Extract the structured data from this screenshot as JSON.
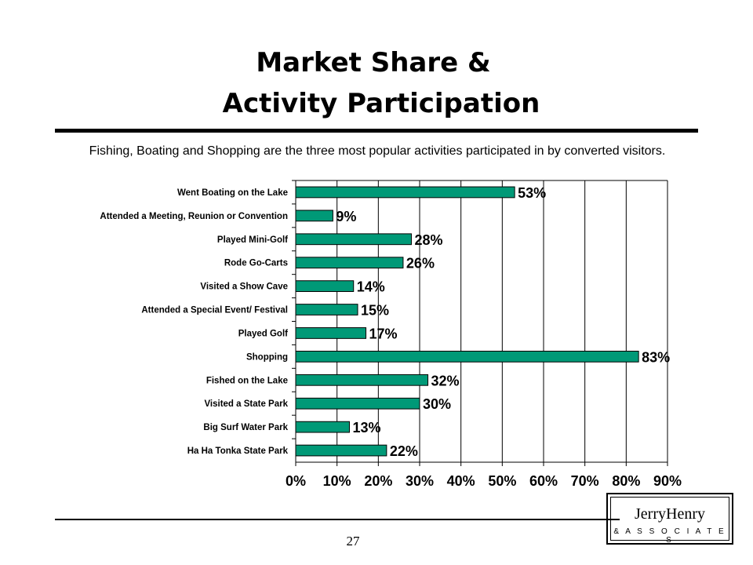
{
  "title_line1": "Market Share &",
  "title_line2": "Activity Participation",
  "subtitle": "Fishing, Boating and Shopping are the three most popular activities participated in by converted visitors.",
  "page_number": "27",
  "logo": {
    "name": "JerryHenry",
    "sub": "& A S S O C I A T E S"
  },
  "colors": {
    "bar": "#009977",
    "bar_border": "#000000"
  },
  "chart_data": {
    "type": "bar",
    "orientation": "horizontal",
    "categories": [
      "Went Boating on the Lake",
      "Attended a Meeting, Reunion or Convention",
      "Played Mini-Golf",
      "Rode Go-Carts",
      "Visited a Show Cave",
      "Attended a Special Event/ Festival",
      "Played Golf",
      "Shopping",
      "Fished on the Lake",
      "Visited a State Park",
      "Big Surf Water Park",
      "Ha Ha Tonka State Park"
    ],
    "values": [
      53,
      9,
      28,
      26,
      14,
      15,
      17,
      83,
      32,
      30,
      13,
      22
    ],
    "data_labels": [
      "53%",
      "9%",
      "28%",
      "26%",
      "14%",
      "15%",
      "17%",
      "83%",
      "32%",
      "30%",
      "13%",
      "22%"
    ],
    "xlim": [
      0,
      90
    ],
    "x_ticks": [
      "0%",
      "10%",
      "20%",
      "30%",
      "40%",
      "50%",
      "60%",
      "70%",
      "80%",
      "90%"
    ],
    "grid": "vertical",
    "legend": "none"
  }
}
